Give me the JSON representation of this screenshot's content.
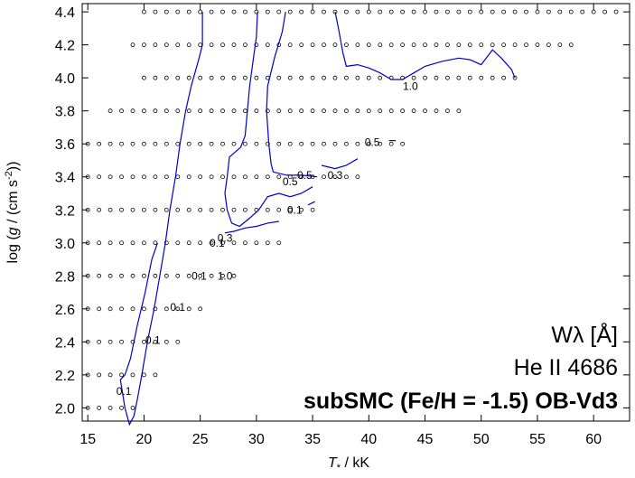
{
  "chart_data": {
    "type": "scatter",
    "title": "",
    "xlabel": "T* / kK",
    "ylabel": "log (g / (cm s-2))",
    "xlabel_parts": {
      "main": "T",
      "sub": "*",
      "rest": " / kK"
    },
    "ylabel_parts": {
      "pre": "log (",
      "g": "g",
      "mid": " / (cm s",
      "sup": "-2",
      "post": "))"
    },
    "xlim": [
      14.5,
      63.2
    ],
    "ylim": [
      1.92,
      4.45
    ],
    "xticks": [
      15,
      20,
      25,
      30,
      35,
      40,
      45,
      50,
      55,
      60
    ],
    "yticks": [
      2.0,
      2.2,
      2.4,
      2.6,
      2.8,
      3.0,
      3.2,
      3.4,
      3.6,
      3.8,
      4.0,
      4.2,
      4.4
    ],
    "grid": false,
    "annotations": {
      "quantity": "Wλ [Å]",
      "line": "He II 4686",
      "model": "subSMC (Fe/H = -1.5) OB-Vd3"
    },
    "colors": {
      "contour": "#0000cc",
      "points": "#000000"
    },
    "grid_models": [
      {
        "logg": 2.0,
        "x": [
          15,
          16,
          17,
          18,
          19
        ]
      },
      {
        "logg": 2.2,
        "x": [
          15,
          16,
          17,
          18,
          19,
          20,
          21
        ]
      },
      {
        "logg": 2.4,
        "x": [
          15,
          16,
          17,
          18,
          19,
          20,
          21,
          22,
          23
        ]
      },
      {
        "logg": 2.6,
        "x": [
          15,
          16,
          17,
          18,
          19,
          20,
          21,
          22,
          23,
          24,
          25
        ]
      },
      {
        "logg": 2.8,
        "x": [
          15,
          16,
          17,
          18,
          19,
          20,
          21,
          22,
          23,
          24,
          25,
          26,
          27,
          28
        ]
      },
      {
        "logg": 3.0,
        "x": [
          15,
          16,
          17,
          18,
          19,
          20,
          21,
          22,
          23,
          24,
          25,
          26,
          27,
          28,
          29,
          30,
          31,
          32
        ]
      },
      {
        "logg": 3.2,
        "x": [
          15,
          16,
          17,
          18,
          19,
          20,
          21,
          22,
          23,
          24,
          25,
          26,
          27,
          28,
          29,
          30,
          31,
          32,
          33,
          34,
          35
        ]
      },
      {
        "logg": 3.4,
        "x": [
          15,
          16,
          17,
          18,
          19,
          20,
          21,
          22,
          23,
          24,
          25,
          26,
          27,
          28,
          29,
          30,
          31,
          32,
          33,
          34,
          35,
          36,
          37,
          38,
          39
        ]
      },
      {
        "logg": 3.6,
        "x": [
          15,
          16,
          17,
          18,
          19,
          20,
          21,
          22,
          23,
          24,
          25,
          26,
          27,
          28,
          29,
          30,
          31,
          32,
          33,
          34,
          35,
          36,
          37,
          38,
          39,
          40,
          41,
          42,
          43
        ]
      },
      {
        "logg": 3.8,
        "x": [
          17,
          18,
          19,
          20,
          21,
          22,
          23,
          24,
          25,
          26,
          27,
          28,
          29,
          30,
          31,
          32,
          33,
          34,
          35,
          36,
          37,
          38,
          39,
          40,
          41,
          42,
          43,
          44,
          45,
          46,
          47,
          48
        ]
      },
      {
        "logg": 4.0,
        "x": [
          20,
          21,
          22,
          23,
          24,
          25,
          26,
          27,
          28,
          29,
          30,
          31,
          32,
          33,
          34,
          35,
          36,
          37,
          38,
          39,
          40,
          41,
          42,
          43,
          44,
          45,
          46,
          47,
          48,
          49,
          50,
          51,
          52,
          53
        ]
      },
      {
        "logg": 4.2,
        "x": [
          19,
          20,
          21,
          22,
          23,
          24,
          25,
          26,
          27,
          28,
          29,
          30,
          31,
          32,
          33,
          34,
          35,
          36,
          37,
          38,
          39,
          40,
          41,
          42,
          43,
          44,
          45,
          46,
          47,
          48,
          49,
          50,
          51,
          52,
          53,
          54,
          55,
          56,
          57,
          58
        ]
      },
      {
        "logg": 4.4,
        "x": [
          20,
          21,
          22,
          23,
          24,
          25,
          26,
          27,
          28,
          29,
          30,
          31,
          32,
          33,
          34,
          35,
          36,
          37,
          38,
          39,
          40,
          41,
          42,
          43,
          44,
          45,
          46,
          47,
          48,
          49,
          50,
          51,
          52,
          53,
          54,
          55,
          56,
          57,
          58,
          59,
          60,
          61,
          62
        ]
      }
    ],
    "contours": [
      {
        "points": [
          [
            25.2,
            4.4
          ],
          [
            25.2,
            4.2
          ],
          [
            24.9,
            4.12
          ],
          [
            24.2,
            3.95
          ],
          [
            23.7,
            3.8
          ],
          [
            23.2,
            3.6
          ],
          [
            22.8,
            3.4
          ],
          [
            22.3,
            3.2
          ],
          [
            21.9,
            3.0
          ],
          [
            21.4,
            2.8
          ],
          [
            20.9,
            2.6
          ],
          [
            20.3,
            2.4
          ],
          [
            19.8,
            2.2
          ],
          [
            19.4,
            2.05
          ],
          [
            19.1,
            1.95
          ],
          [
            18.7,
            1.9
          ],
          [
            18.3,
            2.0
          ],
          [
            17.9,
            2.17
          ],
          [
            18.3,
            2.2
          ],
          [
            18.8,
            2.3
          ],
          [
            19.4,
            2.5
          ],
          [
            20.1,
            2.7
          ],
          [
            20.7,
            2.9
          ],
          [
            21.2,
            3.0
          ]
        ]
      },
      {
        "points": [
          [
            30.1,
            4.4
          ],
          [
            30.0,
            4.25
          ],
          [
            29.7,
            4.1
          ],
          [
            29.4,
            3.95
          ],
          [
            29.2,
            3.8
          ],
          [
            29.0,
            3.65
          ],
          [
            28.6,
            3.58
          ],
          [
            27.6,
            3.52
          ],
          [
            27.4,
            3.4
          ],
          [
            27.2,
            3.3
          ],
          [
            27.4,
            3.2
          ],
          [
            27.8,
            3.12
          ],
          [
            28.5,
            3.1
          ],
          [
            29.4,
            3.15
          ],
          [
            30.2,
            3.2
          ],
          [
            31.0,
            3.28
          ],
          [
            32.0,
            3.3
          ],
          [
            33.0,
            3.28
          ],
          [
            34.0,
            3.3
          ],
          [
            35.0,
            3.34
          ]
        ]
      },
      {
        "points": [
          [
            32.6,
            4.4
          ],
          [
            32.3,
            4.28
          ],
          [
            31.6,
            4.12
          ],
          [
            31.0,
            3.95
          ],
          [
            30.9,
            3.8
          ],
          [
            31.1,
            3.6
          ],
          [
            31.3,
            3.48
          ],
          [
            31.5,
            3.43
          ],
          [
            32.7,
            3.41
          ],
          [
            34.0,
            3.41
          ],
          [
            35.4,
            3.4
          ]
        ]
      },
      {
        "points": [
          [
            37.0,
            4.4
          ],
          [
            37.3,
            4.3
          ],
          [
            37.7,
            4.15
          ],
          [
            38.0,
            4.07
          ],
          [
            39.0,
            4.08
          ],
          [
            40.0,
            4.06
          ],
          [
            41.0,
            4.03
          ],
          [
            42.0,
            3.99
          ],
          [
            43.0,
            3.99
          ],
          [
            44.0,
            4.03
          ],
          [
            45.0,
            4.07
          ],
          [
            46.5,
            4.1
          ],
          [
            48.0,
            4.12
          ],
          [
            49.0,
            4.11
          ],
          [
            50.0,
            4.08
          ],
          [
            51.0,
            4.17
          ],
          [
            51.8,
            4.12
          ],
          [
            52.7,
            4.05
          ],
          [
            53.0,
            4.0
          ]
        ]
      },
      {
        "points": [
          [
            27.2,
            3.06
          ],
          [
            28.0,
            3.07
          ],
          [
            29.0,
            3.09
          ],
          [
            30.0,
            3.1
          ],
          [
            31.0,
            3.12
          ],
          [
            32.0,
            3.13
          ]
        ]
      },
      {
        "points": [
          [
            35.8,
            3.47
          ],
          [
            37.0,
            3.45
          ],
          [
            38.0,
            3.47
          ],
          [
            39.0,
            3.51
          ]
        ]
      },
      {
        "points": [
          [
            34.6,
            3.23
          ],
          [
            35.2,
            3.25
          ]
        ]
      },
      {
        "points": [
          [
            41.8,
            3.62
          ],
          [
            42.4,
            3.62
          ]
        ]
      }
    ],
    "contour_labels": [
      {
        "text": "0.1",
        "x": 18.2,
        "y": 2.1
      },
      {
        "text": "0.1",
        "x": 20.8,
        "y": 2.41
      },
      {
        "text": "0.1",
        "x": 23.0,
        "y": 2.61
      },
      {
        "text": "0.1",
        "x": 24.9,
        "y": 2.8
      },
      {
        "text": "1.0",
        "x": 27.2,
        "y": 2.8
      },
      {
        "text": "0.1",
        "x": 26.5,
        "y": 3.0
      },
      {
        "text": "0.3",
        "x": 27.2,
        "y": 3.03
      },
      {
        "text": "0.1",
        "x": 33.4,
        "y": 3.2
      },
      {
        "text": "0.5",
        "x": 33.0,
        "y": 3.37
      },
      {
        "text": "0.5",
        "x": 34.3,
        "y": 3.41
      },
      {
        "text": "0.3",
        "x": 37.0,
        "y": 3.41
      },
      {
        "text": "0.5",
        "x": 40.3,
        "y": 3.61
      },
      {
        "text": "1.0",
        "x": 43.7,
        "y": 3.95
      }
    ]
  }
}
